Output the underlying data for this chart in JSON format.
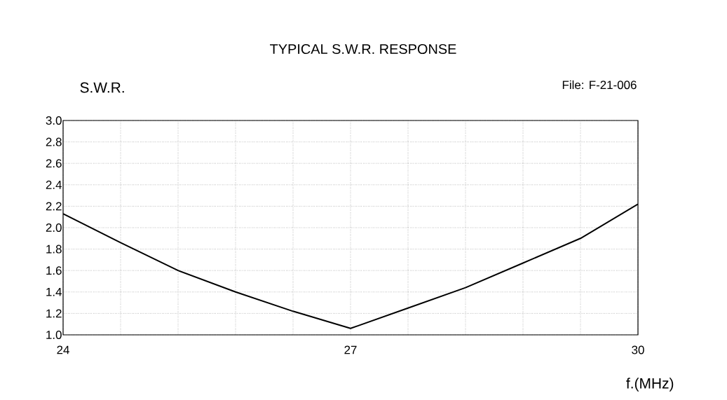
{
  "chart_data": {
    "type": "line",
    "title": "TYPICAL S.W.R. RESPONSE",
    "ylabel": "S.W.R.",
    "xlabel": "f.(MHz)",
    "annotations": [
      "File: F-21-006"
    ],
    "x": [
      24,
      24.6,
      25.2,
      25.8,
      26.4,
      27,
      27.6,
      28.2,
      28.8,
      29.4,
      30
    ],
    "series": [
      {
        "color": "#000000",
        "values": [
          2.13,
          1.86,
          1.6,
          1.4,
          1.22,
          1.06,
          1.25,
          1.44,
          1.67,
          1.9,
          2.22
        ]
      }
    ],
    "xlim": [
      24,
      30
    ],
    "xticks": [
      24,
      {
        "value": 24.6,
        "label": null
      },
      {
        "value": 25.2,
        "label": null
      },
      {
        "value": 25.8,
        "label": null
      },
      {
        "value": 26.4,
        "label": null
      },
      27,
      {
        "value": 27.6,
        "label": null
      },
      {
        "value": 28.2,
        "label": null
      },
      {
        "value": 28.8,
        "label": null
      },
      {
        "value": 29.4,
        "label": null
      },
      30
    ],
    "ylim": [
      1,
      3
    ],
    "yticks": [
      {
        "value": 1,
        "label": "1.0"
      },
      {
        "value": 1.2,
        "label": "1.2"
      },
      {
        "value": 1.4,
        "label": "1.4"
      },
      {
        "value": 1.6,
        "label": "1.6"
      },
      {
        "value": 1.8,
        "label": "1.8"
      },
      {
        "value": 2,
        "label": "2.0"
      },
      {
        "value": 2.2,
        "label": "2.2"
      },
      {
        "value": 2.4,
        "label": "2.4"
      },
      {
        "value": 2.6,
        "label": "2.6"
      },
      {
        "value": 2.8,
        "label": "2.8"
      },
      {
        "value": 3,
        "label": "3.0"
      }
    ],
    "grid": true,
    "line_style": "solid"
  }
}
